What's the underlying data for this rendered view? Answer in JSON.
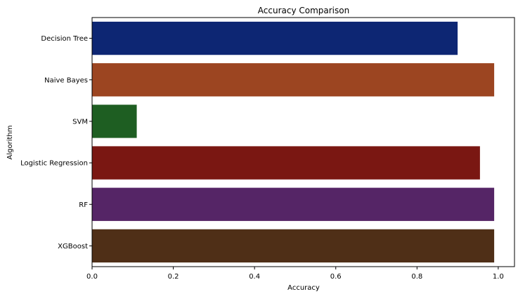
{
  "chart_data": {
    "type": "bar",
    "orientation": "horizontal",
    "title": "Accuracy Comparison",
    "xlabel": "Accuracy",
    "ylabel": "Algorithm",
    "xlim": [
      0,
      1.04
    ],
    "xticks": [
      "0.0",
      "0.2",
      "0.4",
      "0.6",
      "0.8",
      "1.0"
    ],
    "grid": false,
    "categories": [
      "Decision Tree",
      "Naive Bayes",
      "SVM",
      "Logistic Regression",
      "RF",
      "XGBoost"
    ],
    "values": [
      0.9,
      0.99,
      0.11,
      0.955,
      0.99,
      0.99
    ],
    "colors": [
      "#0d2673",
      "#9c4521",
      "#1e5e22",
      "#7a1712",
      "#552566",
      "#4f2f17"
    ]
  }
}
